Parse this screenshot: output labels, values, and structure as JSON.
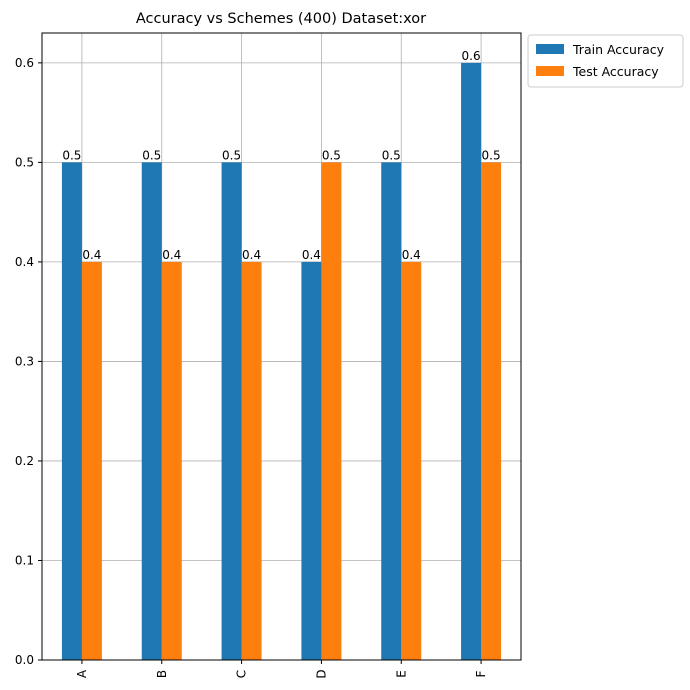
{
  "chart_data": {
    "type": "bar",
    "title": "Accuracy vs Schemes (400) Dataset:xor",
    "xlabel": "",
    "ylabel": "",
    "categories": [
      "A",
      "B",
      "C",
      "D",
      "E",
      "F"
    ],
    "series": [
      {
        "name": "Train Accuracy",
        "values": [
          0.5,
          0.5,
          0.5,
          0.4,
          0.5,
          0.6
        ],
        "color": "#1f77b4"
      },
      {
        "name": "Test Accuracy",
        "values": [
          0.4,
          0.4,
          0.4,
          0.5,
          0.4,
          0.5
        ],
        "color": "#ff7f0e"
      }
    ],
    "ylim": [
      0,
      0.63
    ],
    "yticks": [
      0.0,
      0.1,
      0.2,
      0.3,
      0.4,
      0.5,
      0.6
    ],
    "ytick_labels": [
      "0.0",
      "0.1",
      "0.2",
      "0.3",
      "0.4",
      "0.5",
      "0.6"
    ],
    "grid": true,
    "legend_position": "outside-top-right",
    "data_labels": true
  }
}
